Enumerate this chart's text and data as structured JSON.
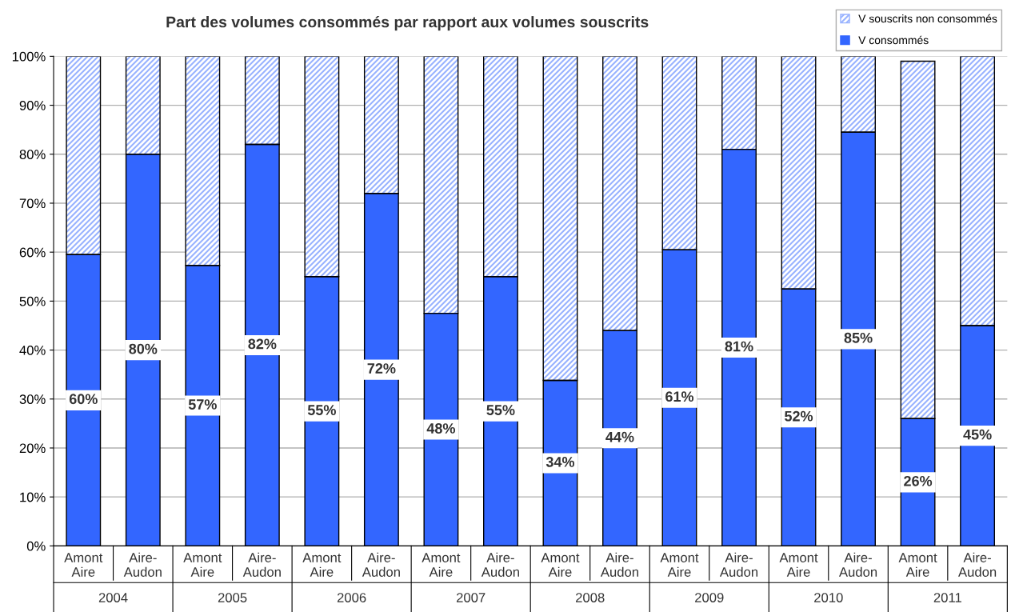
{
  "chart_data": {
    "type": "bar",
    "title": "Part des volumes consommés par rapport aux volumes souscrits",
    "categories": [
      "Amont\nAire",
      "Aire-\nAudon",
      "Amont\nAire",
      "Aire-\nAudon",
      "Amont\nAire",
      "Aire-\nAudon",
      "Amont\nAire",
      "Aire-\nAudon",
      "Amont\nAire",
      "Aire-\nAudon",
      "Amont\nAire",
      "Aire-\nAudon",
      "Amont\nAire",
      "Aire-\nAudon",
      "Amont\nAire",
      "Aire-\nAudon"
    ],
    "stacked": true,
    "series": [
      {
        "name": "V consommés",
        "color": "#3366ff",
        "values": [
          59.5,
          80,
          57.3,
          82,
          55,
          72,
          47.5,
          55,
          33.8,
          44,
          60.5,
          81,
          52.5,
          84.5,
          26,
          45
        ],
        "value_labels": [
          "60%",
          "80%",
          "57%",
          "82%",
          "55%",
          "72%",
          "48%",
          "55%",
          "34%",
          "44%",
          "61%",
          "81%",
          "52%",
          "85%",
          "26%",
          "45%"
        ]
      },
      {
        "name": "V souscrits non consommés",
        "color": "#99b3ff",
        "values": [
          40.5,
          20,
          42.7,
          18,
          45,
          28,
          52.5,
          45,
          66.2,
          56,
          39.5,
          19,
          47.5,
          15.5,
          73,
          55
        ]
      }
    ],
    "annotations": [
      "2004",
      "2005",
      "2006",
      "2007",
      "2008",
      "2009",
      "2010",
      "2011"
    ],
    "ylim": [
      0,
      100
    ],
    "yticks": [
      {
        "value": 0,
        "label": "0%"
      },
      {
        "value": 10,
        "label": "10%"
      },
      {
        "value": 20,
        "label": "20%"
      },
      {
        "value": 30,
        "label": "30%"
      },
      {
        "value": 40,
        "label": "40%"
      },
      {
        "value": 50,
        "label": "50%"
      },
      {
        "value": 60,
        "label": "60%"
      },
      {
        "value": 70,
        "label": "70%"
      },
      {
        "value": 80,
        "label": "80%"
      },
      {
        "value": 90,
        "label": "90%"
      },
      {
        "value": 100,
        "label": "100%"
      }
    ],
    "grid": "y",
    "legend": "top right"
  }
}
